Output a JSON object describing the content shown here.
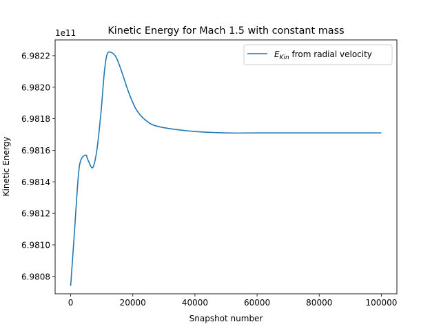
{
  "chart_data": {
    "type": "line",
    "title": "Kinetic Energy for Mach 1.5 with constant mass",
    "xlabel": "Snapshot number",
    "ylabel": "Kinetic Energy",
    "y_offset_label": "1e11",
    "xlim": [
      -5000,
      105000
    ],
    "ylim": [
      6.98069,
      6.9823
    ],
    "xticks": [
      0,
      20000,
      40000,
      60000,
      80000,
      100000
    ],
    "xtick_labels": [
      "0",
      "20000",
      "40000",
      "60000",
      "80000",
      "100000"
    ],
    "yticks": [
      6.9808,
      6.981,
      6.9812,
      6.9814,
      6.9816,
      6.9818,
      6.982,
      6.9822
    ],
    "ytick_labels": [
      "6.9808",
      "6.9810",
      "6.9812",
      "6.9814",
      "6.9816",
      "6.9818",
      "6.9820",
      "6.9822"
    ],
    "grid": false,
    "legend_placement": "upper right",
    "series": [
      {
        "name_prefix": "E",
        "name_subscript": "Kin",
        "name_suffix": " from radial velocity",
        "color": "#1f77b4",
        "x": [
          0,
          1109,
          2439,
          3326,
          4878,
          5543,
          7095,
          8426,
          9756,
          10865,
          11752,
          13082,
          14634,
          16408,
          18625,
          21064,
          24169,
          28381,
          39468,
          50554,
          60000,
          80000,
          100000
        ],
        "y": [
          6.98074,
          6.98105,
          6.98143,
          6.98154,
          6.98157,
          6.98154,
          6.98149,
          6.9816,
          6.98184,
          6.9821,
          6.98221,
          6.98222,
          6.98219,
          6.9821,
          6.98197,
          6.98186,
          6.98179,
          6.98175,
          6.98172,
          6.98171,
          6.98171,
          6.98171,
          6.98171
        ]
      }
    ]
  }
}
